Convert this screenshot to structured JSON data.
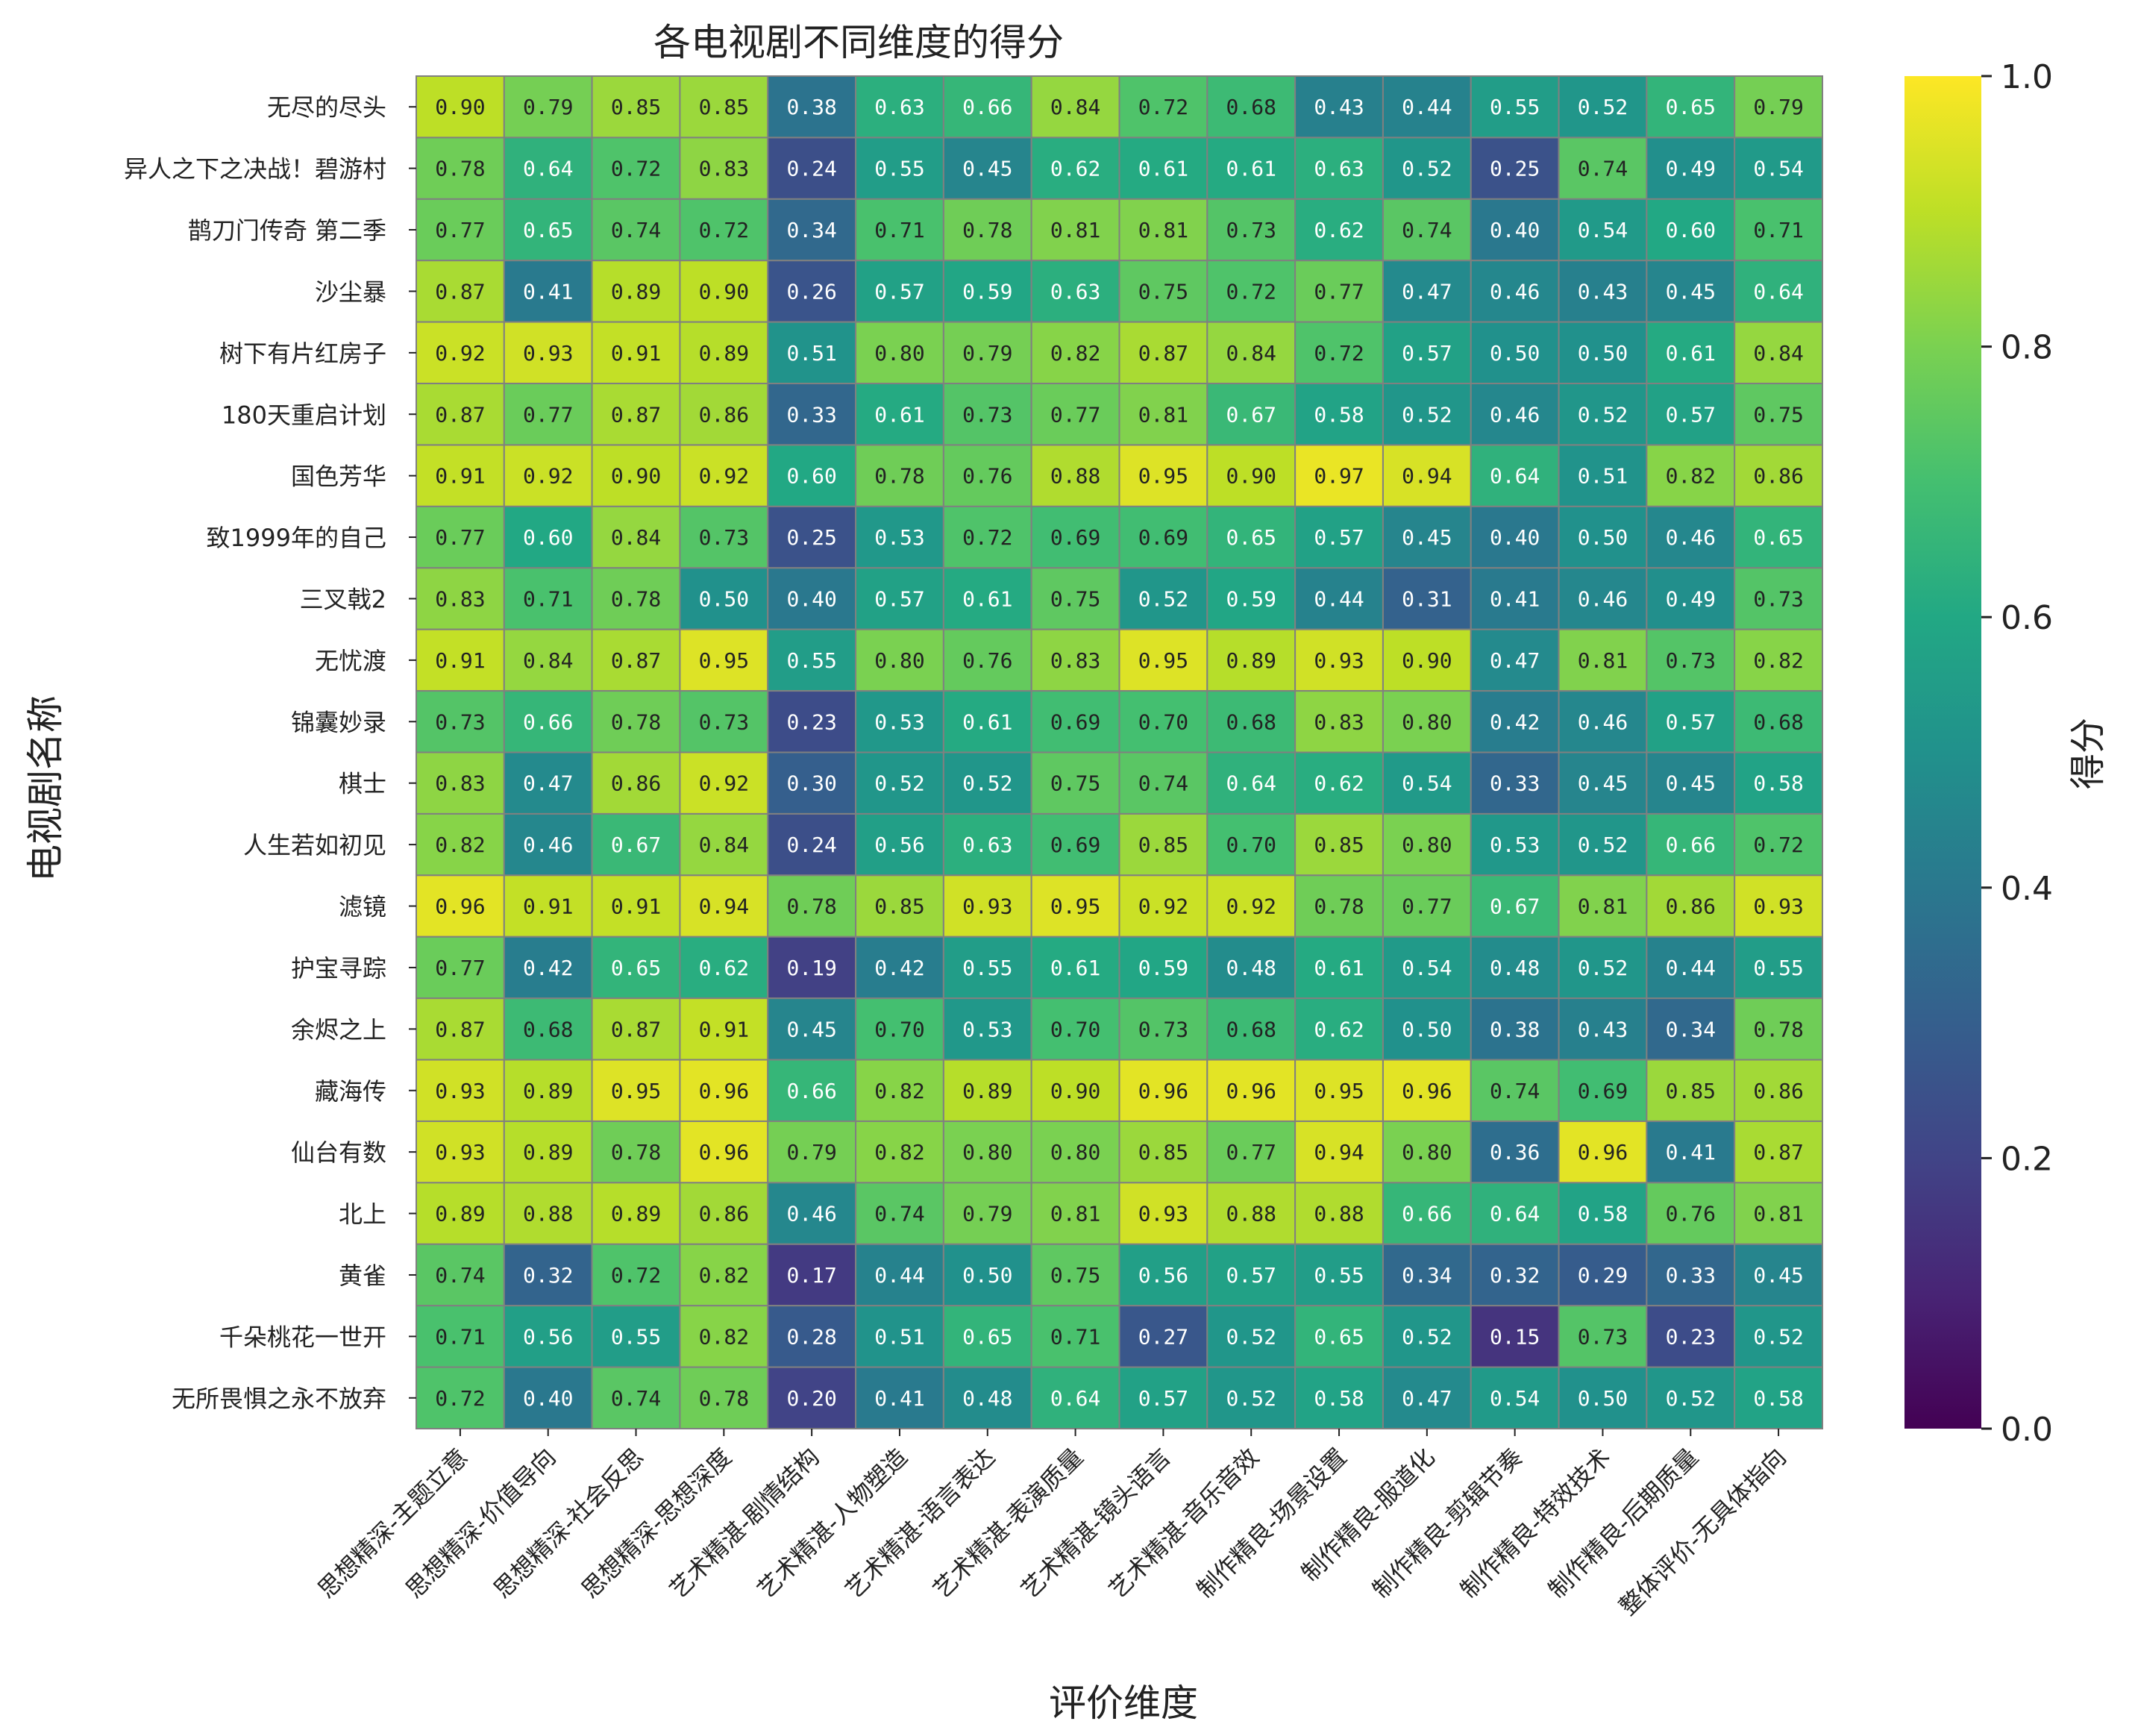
{
  "chart_data": {
    "type": "heatmap",
    "title": "各电视剧不同维度的得分",
    "xlabel": "评价维度",
    "ylabel": "电视剧名称",
    "colorbar_label": "得分",
    "colormap": "viridis",
    "value_range": [
      0.0,
      1.0
    ],
    "colorbar_ticks": [
      "0.0",
      "0.2",
      "0.4",
      "0.6",
      "0.8",
      "1.0"
    ],
    "x_categories": [
      "思想精深-主题立意",
      "思想精深-价值导向",
      "思想精深-社会反思",
      "思想精深-思想深度",
      "艺术精湛-剧情结构",
      "艺术精湛-人物塑造",
      "艺术精湛-语言表达",
      "艺术精湛-表演质量",
      "艺术精湛-镜头语言",
      "艺术精湛-音乐音效",
      "制作精良-场景设置",
      "制作精良-服道化",
      "制作精良-剪辑节奏",
      "制作精良-特效技术",
      "制作精良-后期质量",
      "整体评价-无具体指向"
    ],
    "y_categories": [
      "无尽的尽头",
      "异人之下之决战！碧游村",
      "鹊刀门传奇 第二季",
      "沙尘暴",
      "树下有片红房子",
      "180天重启计划",
      "国色芳华",
      "致1999年的自己",
      "三叉戟2",
      "无忧渡",
      "锦囊妙录",
      "棋士",
      "人生若如初见",
      "滤镜",
      "护宝寻踪",
      "余烬之上",
      "藏海传",
      "仙台有数",
      "北上",
      "黄雀",
      "千朵桃花一世开",
      "无所畏惧之永不放弃"
    ],
    "values": [
      [
        0.9,
        0.79,
        0.85,
        0.85,
        0.38,
        0.63,
        0.66,
        0.84,
        0.72,
        0.68,
        0.43,
        0.44,
        0.55,
        0.52,
        0.65,
        0.79
      ],
      [
        0.78,
        0.64,
        0.72,
        0.83,
        0.24,
        0.55,
        0.45,
        0.62,
        0.61,
        0.61,
        0.63,
        0.52,
        0.25,
        0.74,
        0.49,
        0.54
      ],
      [
        0.77,
        0.65,
        0.74,
        0.72,
        0.34,
        0.71,
        0.78,
        0.81,
        0.81,
        0.73,
        0.62,
        0.74,
        0.4,
        0.54,
        0.6,
        0.71
      ],
      [
        0.87,
        0.41,
        0.89,
        0.9,
        0.26,
        0.57,
        0.59,
        0.63,
        0.75,
        0.72,
        0.77,
        0.47,
        0.46,
        0.43,
        0.45,
        0.64
      ],
      [
        0.92,
        0.93,
        0.91,
        0.89,
        0.51,
        0.8,
        0.79,
        0.82,
        0.87,
        0.84,
        0.72,
        0.57,
        0.5,
        0.5,
        0.61,
        0.84
      ],
      [
        0.87,
        0.77,
        0.87,
        0.86,
        0.33,
        0.61,
        0.73,
        0.77,
        0.81,
        0.67,
        0.58,
        0.52,
        0.46,
        0.52,
        0.57,
        0.75
      ],
      [
        0.91,
        0.92,
        0.9,
        0.92,
        0.6,
        0.78,
        0.76,
        0.88,
        0.95,
        0.9,
        0.97,
        0.94,
        0.64,
        0.51,
        0.82,
        0.86
      ],
      [
        0.77,
        0.6,
        0.84,
        0.73,
        0.25,
        0.53,
        0.72,
        0.69,
        0.69,
        0.65,
        0.57,
        0.45,
        0.4,
        0.5,
        0.46,
        0.65
      ],
      [
        0.83,
        0.71,
        0.78,
        0.5,
        0.4,
        0.57,
        0.61,
        0.75,
        0.52,
        0.59,
        0.44,
        0.31,
        0.41,
        0.46,
        0.49,
        0.73
      ],
      [
        0.91,
        0.84,
        0.87,
        0.95,
        0.55,
        0.8,
        0.76,
        0.83,
        0.95,
        0.89,
        0.93,
        0.9,
        0.47,
        0.81,
        0.73,
        0.82
      ],
      [
        0.73,
        0.66,
        0.78,
        0.73,
        0.23,
        0.53,
        0.61,
        0.69,
        0.7,
        0.68,
        0.83,
        0.8,
        0.42,
        0.46,
        0.57,
        0.68
      ],
      [
        0.83,
        0.47,
        0.86,
        0.92,
        0.3,
        0.52,
        0.52,
        0.75,
        0.74,
        0.64,
        0.62,
        0.54,
        0.33,
        0.45,
        0.45,
        0.58
      ],
      [
        0.82,
        0.46,
        0.67,
        0.84,
        0.24,
        0.56,
        0.63,
        0.69,
        0.85,
        0.7,
        0.85,
        0.8,
        0.53,
        0.52,
        0.66,
        0.72
      ],
      [
        0.96,
        0.91,
        0.91,
        0.94,
        0.78,
        0.85,
        0.93,
        0.95,
        0.92,
        0.92,
        0.78,
        0.77,
        0.67,
        0.81,
        0.86,
        0.93
      ],
      [
        0.77,
        0.42,
        0.65,
        0.62,
        0.19,
        0.42,
        0.55,
        0.61,
        0.59,
        0.48,
        0.61,
        0.54,
        0.48,
        0.52,
        0.44,
        0.55
      ],
      [
        0.87,
        0.68,
        0.87,
        0.91,
        0.45,
        0.7,
        0.53,
        0.7,
        0.73,
        0.68,
        0.62,
        0.5,
        0.38,
        0.43,
        0.34,
        0.78
      ],
      [
        0.93,
        0.89,
        0.95,
        0.96,
        0.66,
        0.82,
        0.89,
        0.9,
        0.96,
        0.96,
        0.95,
        0.96,
        0.74,
        0.69,
        0.85,
        0.86
      ],
      [
        0.93,
        0.89,
        0.78,
        0.96,
        0.79,
        0.82,
        0.8,
        0.8,
        0.85,
        0.77,
        0.94,
        0.8,
        0.36,
        0.96,
        0.41,
        0.87
      ],
      [
        0.89,
        0.88,
        0.89,
        0.86,
        0.46,
        0.74,
        0.79,
        0.81,
        0.93,
        0.88,
        0.88,
        0.66,
        0.64,
        0.58,
        0.76,
        0.81
      ],
      [
        0.74,
        0.32,
        0.72,
        0.82,
        0.17,
        0.44,
        0.5,
        0.75,
        0.56,
        0.57,
        0.55,
        0.34,
        0.32,
        0.29,
        0.33,
        0.45
      ],
      [
        0.71,
        0.56,
        0.55,
        0.82,
        0.28,
        0.51,
        0.65,
        0.71,
        0.27,
        0.52,
        0.65,
        0.52,
        0.15,
        0.73,
        0.23,
        0.52
      ],
      [
        0.72,
        0.4,
        0.74,
        0.78,
        0.2,
        0.41,
        0.48,
        0.64,
        0.57,
        0.52,
        0.58,
        0.47,
        0.54,
        0.5,
        0.52,
        0.58
      ]
    ]
  }
}
